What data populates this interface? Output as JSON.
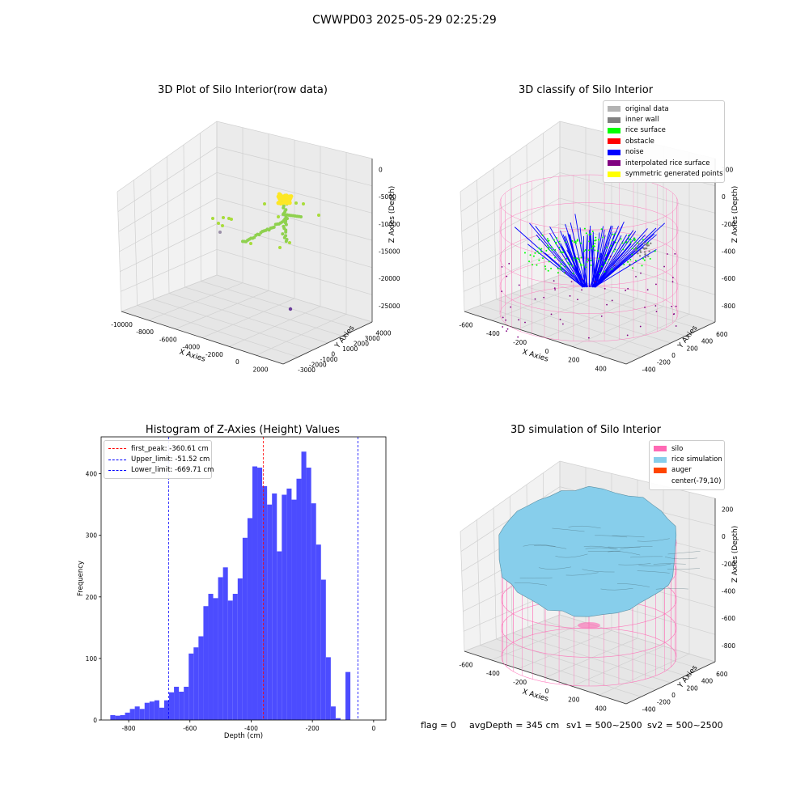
{
  "suptitle": "CWWPD03 2025-05-29 02:25:29",
  "colors": {
    "original": "#b3b3b3",
    "inner_wall": "#808080",
    "rice_surface": "#00ff00",
    "obstacle": "#ff0000",
    "noise": "#0000ff",
    "interpolated": "#800080",
    "symmetric": "#ffff00",
    "silo": "#ff69b4",
    "rice_sim": "#87ceeb",
    "auger": "#ff4500",
    "hist_bar": "#4c4cff",
    "peak_line": "#ff0000",
    "limit_line": "#0000ff"
  },
  "chart_data": [
    {
      "type": "scatter",
      "title": "3D Plot of Silo Interior(row data)",
      "xlabel": "X Axies",
      "ylabel": "Y Axies",
      "zlabel": "Z Axies (Depth)",
      "x_ticks": [
        "-10000",
        "-8000",
        "-6000",
        "-4000",
        "-2000",
        "0",
        "2000"
      ],
      "y_ticks": [
        "-3000",
        "-2000",
        "-1000",
        "0",
        "1000",
        "2000",
        "3000",
        "4000"
      ],
      "z_ticks": [
        "0",
        "-5000",
        "-10000",
        "-15000",
        "-20000",
        "-25000"
      ]
    },
    {
      "type": "scatter",
      "title": "3D classify of Silo Interior",
      "xlabel": "X Axies",
      "ylabel": "Y Axies",
      "zlabel": "Z Axies (Depth)",
      "x_ticks": [
        "-600",
        "-400",
        "-200",
        "0",
        "200",
        "400"
      ],
      "y_ticks": [
        "-400",
        "-200",
        "0",
        "200",
        "400",
        "600"
      ],
      "z_ticks": [
        "200",
        "0",
        "-200",
        "-400",
        "-600",
        "-800"
      ],
      "legend": [
        "original data",
        "inner wall",
        "rice surface",
        "obstacle",
        "noise",
        "interpolated rice surface",
        "symmetric generated points"
      ]
    },
    {
      "type": "bar",
      "title": "Histogram of Z-Axies (Height) Values",
      "xlabel": "Depth (cm)",
      "ylabel": "Frequency",
      "xlim": [
        -890,
        40
      ],
      "ylim": [
        0,
        460
      ],
      "x_ticks": [
        "-800",
        "-600",
        "-400",
        "-200",
        "0"
      ],
      "y_ticks": [
        "0",
        "100",
        "200",
        "300",
        "400"
      ],
      "bin_start": -860,
      "bin_width": 16,
      "values": [
        8,
        7,
        8,
        12,
        18,
        22,
        18,
        28,
        30,
        32,
        20,
        32,
        45,
        54,
        46,
        54,
        108,
        118,
        136,
        185,
        205,
        198,
        232,
        248,
        194,
        205,
        230,
        296,
        328,
        412,
        410,
        380,
        350,
        368,
        274,
        366,
        376,
        358,
        392,
        436,
        410,
        352,
        285,
        228,
        102,
        22,
        3,
        0,
        78
      ],
      "vlines": [
        {
          "label": "first_peak: -360.61 cm",
          "x": -360.61,
          "color": "#ff0000"
        },
        {
          "label": "Upper_limit: -51.52 cm",
          "x": -51.52,
          "color": "#0000ff"
        },
        {
          "label": "Lower_limit: -669.71 cm",
          "x": -669.71,
          "color": "#0000ff"
        }
      ]
    },
    {
      "type": "area",
      "title": "3D simulation of Silo Interior",
      "xlabel": "X Axies",
      "ylabel": "Y Axies",
      "zlabel": "Z Axies (Depth)",
      "x_ticks": [
        "-600",
        "-400",
        "-200",
        "0",
        "200",
        "400"
      ],
      "y_ticks": [
        "-400",
        "-200",
        "0",
        "200",
        "400",
        "600"
      ],
      "z_ticks": [
        "200",
        "0",
        "-200",
        "-400",
        "-600",
        "-800"
      ],
      "legend": [
        "silo",
        "rice simulation",
        "auger",
        "center(-79,10)"
      ]
    }
  ],
  "status": {
    "flag": "flag = 0",
    "avg": "avgDepth = 345 cm",
    "sv1": "sv1 = 500~2500",
    "sv2": "sv2 = 500~2500"
  }
}
